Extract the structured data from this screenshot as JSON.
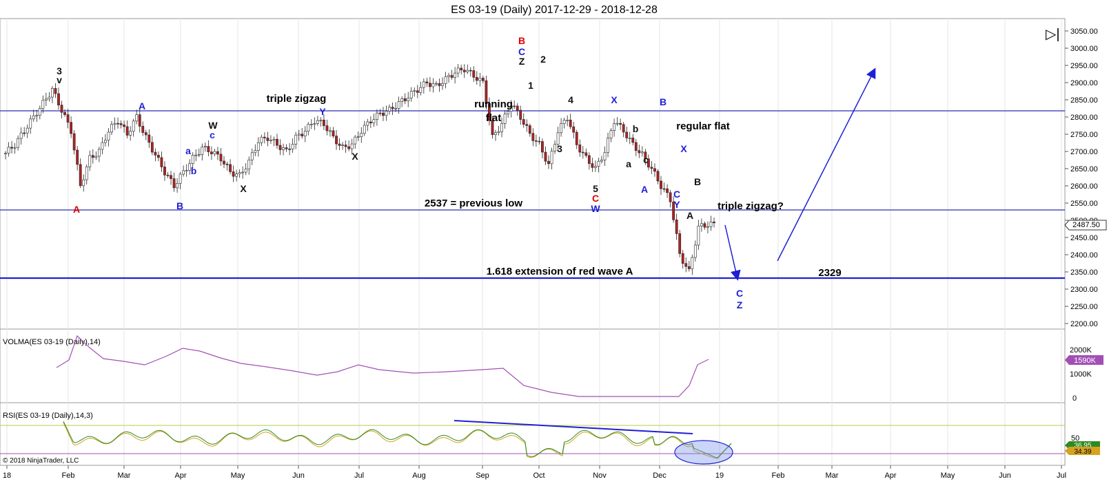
{
  "title": "ES 03-19 (Daily)  2017-12-29 - 2018-12-28",
  "copyright": "© 2018 NinjaTrader, LLC",
  "volma_label": "VOLMA(ES 03-19 (Daily),14)",
  "rsi_label": "RSI(ES 03-19 (Daily),14,3)",
  "price_axis": {
    "min": 2200,
    "max": 3050,
    "ticks": [
      "3050.00",
      "3000.00",
      "2950.00",
      "2900.00",
      "2850.00",
      "2800.00",
      "2750.00",
      "2700.00",
      "2650.00",
      "2600.00",
      "2550.00",
      "2500.00",
      "2450.00",
      "2400.00",
      "2350.00",
      "2300.00",
      "2250.00",
      "2200.00"
    ],
    "last_price_label": "2487.50"
  },
  "volma_axis": {
    "ticks": [
      "2000K",
      "1000K",
      "0"
    ],
    "last_label": "1590K"
  },
  "rsi_axis": {
    "ticks": [
      "50"
    ],
    "last_label_1": "36.95",
    "last_label_2": "34.39"
  },
  "x_axis": {
    "ticks": [
      "18",
      "Feb",
      "Mar",
      "Apr",
      "May",
      "Jun",
      "Jul",
      "Aug",
      "Sep",
      "Oct",
      "Nov",
      "Dec",
      "19",
      "Feb",
      "Mar",
      "Apr",
      "May",
      "Jun",
      "Jul"
    ]
  },
  "annotations": {
    "triple_zigzag": "triple zigzag",
    "running": "running",
    "flat": "flat",
    "regular_flat": "regular flat",
    "previous_low": "2537 = previous low",
    "triple_zigzag_q": "triple zigzag?",
    "extension": "1.618 extension of red wave A",
    "level_2329": "2329"
  },
  "wave_labels": [
    {
      "t": "3",
      "c": "black"
    },
    {
      "t": "v",
      "c": "black"
    },
    {
      "t": "A",
      "c": "red"
    },
    {
      "t": "A",
      "c": "blue"
    },
    {
      "t": "B",
      "c": "blue"
    },
    {
      "t": "a",
      "c": "blue"
    },
    {
      "t": "b",
      "c": "blue"
    },
    {
      "t": "W",
      "c": "black"
    },
    {
      "t": "c",
      "c": "blue"
    },
    {
      "t": "X",
      "c": "black"
    },
    {
      "t": "Y",
      "c": "blue"
    },
    {
      "t": "X",
      "c": "black"
    },
    {
      "t": "B",
      "c": "red"
    },
    {
      "t": "C",
      "c": "blue"
    },
    {
      "t": "Z",
      "c": "black"
    },
    {
      "t": "2",
      "c": "black"
    },
    {
      "t": "1",
      "c": "black"
    },
    {
      "t": "4",
      "c": "black"
    },
    {
      "t": "3",
      "c": "black"
    },
    {
      "t": "5",
      "c": "black"
    },
    {
      "t": "C",
      "c": "red"
    },
    {
      "t": "W",
      "c": "blue"
    },
    {
      "t": "X",
      "c": "blue"
    },
    {
      "t": "b",
      "c": "black"
    },
    {
      "t": "a",
      "c": "black"
    },
    {
      "t": "c",
      "c": "black"
    },
    {
      "t": "A",
      "c": "blue"
    },
    {
      "t": "B",
      "c": "blue"
    },
    {
      "t": "X",
      "c": "blue"
    },
    {
      "t": "C",
      "c": "blue"
    },
    {
      "t": "Y",
      "c": "blue"
    },
    {
      "t": "B",
      "c": "black"
    },
    {
      "t": "A",
      "c": "black"
    },
    {
      "t": "C",
      "c": "blue"
    },
    {
      "t": "Z",
      "c": "blue"
    }
  ],
  "colors": {
    "up": "#ffffff",
    "down": "#b22222",
    "blue": "#1f1fd6",
    "red": "#e00000",
    "volma": "#a24fb5",
    "rsi": "#2e8b22",
    "rsi_avg": "#d6a21f"
  },
  "chart_data": {
    "type": "candlestick",
    "instrument": "ES 03-19",
    "date_range": [
      "2017-12-29",
      "2018-12-28"
    ],
    "approx_closes": [
      2695,
      2720,
      2760,
      2800,
      2840,
      2880,
      2820,
      2760,
      2600,
      2680,
      2700,
      2760,
      2790,
      2750,
      2800,
      2740,
      2690,
      2640,
      2600,
      2640,
      2680,
      2710,
      2700,
      2680,
      2640,
      2630,
      2670,
      2730,
      2740,
      2720,
      2700,
      2740,
      2760,
      2790,
      2780,
      2740,
      2710,
      2720,
      2760,
      2790,
      2810,
      2820,
      2840,
      2860,
      2880,
      2900,
      2890,
      2910,
      2930,
      2940,
      2920,
      2900,
      2740,
      2780,
      2840,
      2800,
      2750,
      2720,
      2660,
      2760,
      2800,
      2720,
      2680,
      2650,
      2700,
      2790,
      2760,
      2720,
      2690,
      2650,
      2600,
      2560,
      2400,
      2350,
      2480,
      2488
    ],
    "horizontal_levels": [
      2815,
      2537,
      2329
    ],
    "last_price": 2487.5
  }
}
